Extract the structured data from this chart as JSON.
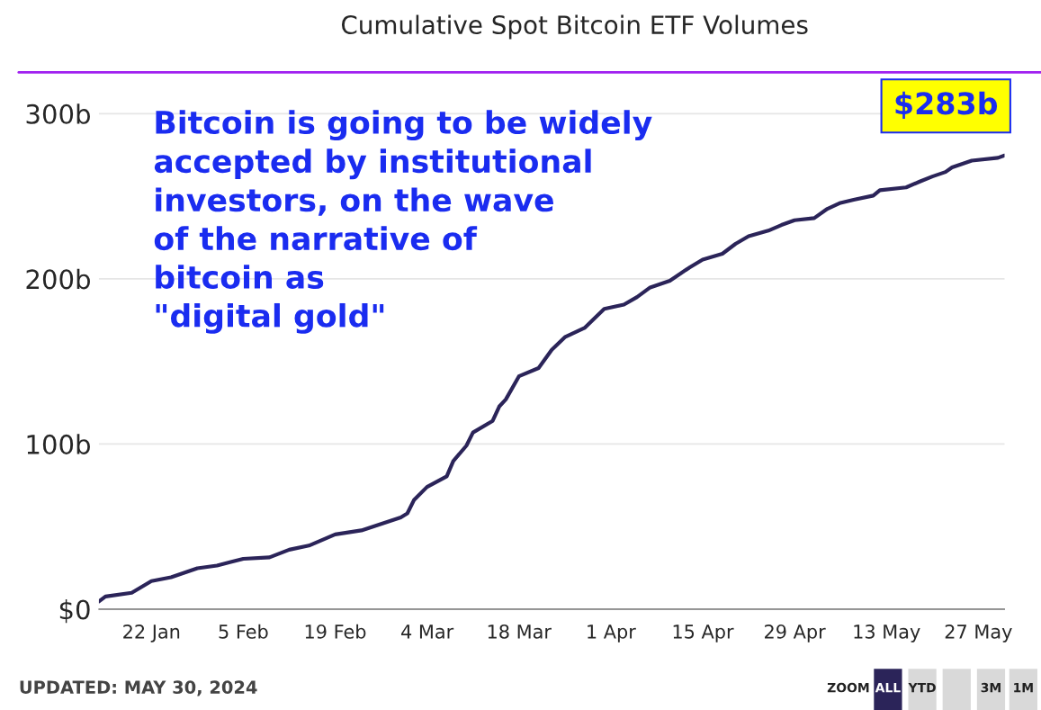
{
  "chart_data": {
    "type": "line",
    "title": "Cumulative Spot Bitcoin ETF Volumes",
    "x": [
      "2024-01-14",
      "2024-01-15",
      "2024-01-19",
      "2024-01-22",
      "2024-01-25",
      "2024-01-29",
      "2024-02-01",
      "2024-02-05",
      "2024-02-09",
      "2024-02-12",
      "2024-02-15",
      "2024-02-19",
      "2024-02-23",
      "2024-02-29",
      "2024-03-01",
      "2024-03-02",
      "2024-03-04",
      "2024-03-07",
      "2024-03-08",
      "2024-03-10",
      "2024-03-11",
      "2024-03-14",
      "2024-03-15",
      "2024-03-16",
      "2024-03-18",
      "2024-03-21",
      "2024-03-23",
      "2024-03-25",
      "2024-03-28",
      "2024-03-31",
      "2024-04-03",
      "2024-04-05",
      "2024-04-07",
      "2024-04-10",
      "2024-04-13",
      "2024-04-15",
      "2024-04-18",
      "2024-04-20",
      "2024-04-22",
      "2024-04-25",
      "2024-04-27",
      "2024-04-29",
      "2024-05-02",
      "2024-05-04",
      "2024-05-06",
      "2024-05-08",
      "2024-05-11",
      "2024-05-12",
      "2024-05-16",
      "2024-05-18",
      "2024-05-20",
      "2024-05-22",
      "2024-05-23",
      "2024-05-26",
      "2024-05-30",
      "2024-05-31"
    ],
    "series": [
      {
        "color": "#2b2459",
        "values": [
          4.7,
          7.7,
          9.9,
          17,
          19.3,
          24.8,
          26.4,
          30.5,
          31.4,
          36,
          38.5,
          45.3,
          47.7,
          55.6,
          58,
          66,
          74,
          80.4,
          89.7,
          99,
          107,
          114,
          122.7,
          127,
          141,
          146,
          157,
          164.7,
          170.3,
          181.8,
          184.4,
          189,
          194.8,
          198.8,
          206.9,
          211.7,
          215.2,
          221.2,
          225.8,
          229.2,
          232.6,
          235.5,
          236.8,
          242.4,
          246,
          247.9,
          250.4,
          253.7,
          255.4,
          258.8,
          262,
          264.7,
          267.5,
          271.6,
          273.3,
          274.7
        ]
      }
    ],
    "xlim": [
      "2024-01-14",
      "2024-05-31"
    ],
    "xticks": [
      {
        "value": "2024-01-22",
        "label": "22 Jan"
      },
      {
        "value": "2024-02-05",
        "label": "5 Feb"
      },
      {
        "value": "2024-02-19",
        "label": "19 Feb"
      },
      {
        "value": "2024-03-04",
        "label": "4 Mar"
      },
      {
        "value": "2024-03-18",
        "label": "18 Mar"
      },
      {
        "value": "2024-04-01",
        "label": "1 Apr"
      },
      {
        "value": "2024-04-15",
        "label": "15 Apr"
      },
      {
        "value": "2024-04-29",
        "label": "29 Apr"
      },
      {
        "value": "2024-05-13",
        "label": "13 May"
      },
      {
        "value": "2024-05-27",
        "label": "27 May"
      }
    ],
    "ylim": [
      0,
      325
    ],
    "yticks": [
      {
        "value": 0,
        "label": "$0"
      },
      {
        "value": 100,
        "label": "100b"
      },
      {
        "value": 200,
        "label": "200b"
      },
      {
        "value": 300,
        "label": "300b"
      }
    ],
    "grid": "y",
    "legend": false,
    "marker": "none",
    "line_style": "solid",
    "annotations": [
      "Bitcoin is going to be widely\naccepted by institutional\ninvestors, on the wave\nof the narrative of\nbitcoin as\n\"digital gold\"",
      {
        "text": "$283b",
        "x": "2024-05-31",
        "y": 274.7
      },
      "UPDATED: MAY 30, 2024",
      "ZOOM",
      "ALL",
      "YTD",
      "3M",
      "1M"
    ]
  }
}
